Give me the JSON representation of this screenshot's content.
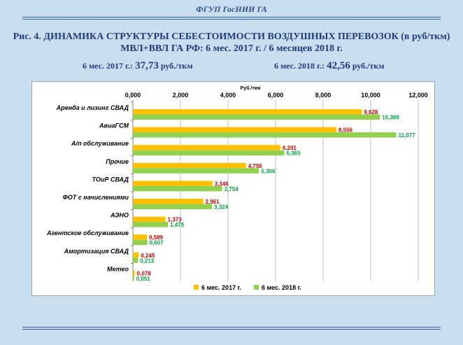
{
  "header": {
    "org": "ФГУП ГосНИИ ГА",
    "title_line1": "Рис. 4. ДИНАМИКА СТРУКТУРЫ СЕБЕСТОИМОСТИ ВОЗДУШНЫХ ПЕРЕВОЗОК (в руб/ткм)",
    "title_line2": "МВЛ+ВВЛ ГА РФ: 6 мес. 2017 г. / 6 месяцев 2018 г.",
    "summary_2017_label": "6 мес. 2017 г.:",
    "summary_2017_value": "37,73",
    "summary_2017_unit": "руб./ткм",
    "summary_2018_label": "6 мес. 2018 г.:",
    "summary_2018_value": "42,56",
    "summary_2018_unit": "руб./ткм"
  },
  "colors": {
    "series_2017": "#ffc000",
    "series_2018": "#92d050",
    "label_2017": "#c00000",
    "label_2018": "#00a040"
  },
  "chart_data": {
    "type": "bar",
    "orientation": "horizontal",
    "unit_label": "Руб./ткм",
    "xlim": [
      0,
      12
    ],
    "ticks": [
      "0,000",
      "2,000",
      "4,000",
      "6,000",
      "8,000",
      "10,000",
      "12,000"
    ],
    "grid": true,
    "legend_position": "bottom",
    "categories": [
      "Аренда и лизинг СВАД",
      "АвиаГСМ",
      "А/п обслуживание",
      "Прочие",
      "ТОиР СВАД",
      "ФОТ с начислениями",
      "АЭНО",
      "Агентское обслуживание",
      "Амортизация СВАД",
      "Метео"
    ],
    "series": [
      {
        "name": "6 мес. 2017 г.",
        "values": [
          9.628,
          8.556,
          6.201,
          4.756,
          3.346,
          2.961,
          1.373,
          0.589,
          0.245,
          0.078
        ],
        "labels": [
          "9,628",
          "8,556",
          "6,201",
          "4,756",
          "3,346",
          "2,961",
          "1,373",
          "0,589",
          "0,245",
          "0,078"
        ]
      },
      {
        "name": "6 мес. 2018 г.",
        "values": [
          10.389,
          11.077,
          6.365,
          5.306,
          3.754,
          3.324,
          1.475,
          0.607,
          0.213,
          0.051
        ],
        "labels": [
          "10,389",
          "11,077",
          "6,365",
          "5,306",
          "3,754",
          "3,324",
          "1,475",
          "0,607",
          "0,213",
          "0,051"
        ]
      }
    ]
  }
}
